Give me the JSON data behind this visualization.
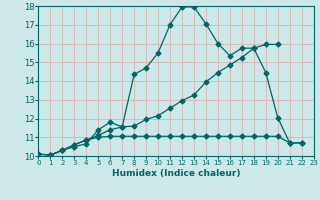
{
  "xlabel": "Humidex (Indice chaleur)",
  "bg_color": "#cce8e8",
  "line_color": "#006666",
  "grid_color": "#dba8a8",
  "xmin": 0,
  "xmax": 23,
  "ymin": 10,
  "ymax": 18,
  "line1_x": [
    0,
    1,
    2,
    3,
    4,
    5,
    6,
    7,
    8,
    9,
    10,
    11,
    12,
    13,
    14,
    15,
    16,
    17,
    18,
    19,
    20,
    21,
    22
  ],
  "line1_y": [
    10.1,
    10.05,
    10.3,
    10.5,
    10.65,
    11.4,
    11.8,
    11.55,
    14.35,
    14.7,
    15.5,
    17.0,
    17.95,
    17.95,
    17.05,
    16.0,
    15.35,
    15.75,
    15.75,
    14.45,
    12.05,
    10.7,
    10.7
  ],
  "line2_x": [
    0,
    1,
    2,
    3,
    4,
    5,
    6,
    7,
    8,
    9,
    10,
    11,
    12,
    13,
    14,
    15,
    16,
    17,
    18,
    19,
    20
  ],
  "line2_y": [
    10.1,
    10.05,
    10.3,
    10.6,
    10.85,
    11.1,
    11.4,
    11.55,
    11.6,
    11.95,
    12.15,
    12.55,
    12.95,
    13.25,
    13.95,
    14.45,
    14.85,
    15.25,
    15.75,
    15.95,
    15.95
  ],
  "line3_x": [
    0,
    1,
    2,
    3,
    4,
    5,
    6,
    7,
    8,
    9,
    10,
    11,
    12,
    13,
    14,
    15,
    16,
    17,
    18,
    19,
    20,
    21,
    22
  ],
  "line3_y": [
    10.1,
    10.05,
    10.3,
    10.6,
    10.85,
    11.0,
    11.05,
    11.05,
    11.05,
    11.05,
    11.05,
    11.05,
    11.05,
    11.05,
    11.05,
    11.05,
    11.05,
    11.05,
    11.05,
    11.05,
    11.05,
    10.7,
    10.7
  ]
}
